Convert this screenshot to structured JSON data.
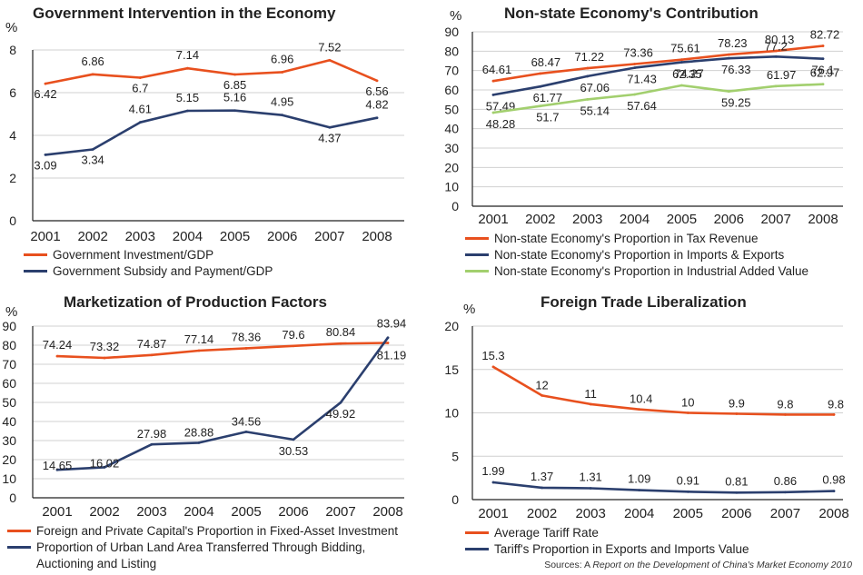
{
  "source": {
    "prefix": "Sources: A ",
    "title": "Report on the Development of China's Market Economy 2010"
  },
  "colors": {
    "orange": "#e8501e",
    "navy": "#2b3f6e",
    "green": "#a2cf6e",
    "grid": "#d0d0d0",
    "axis": "#222222"
  },
  "chart_data": [
    {
      "type": "line",
      "title": "Government Intervention in the Economy",
      "ylabel": "%",
      "ylim": [
        0,
        8
      ],
      "yticks": [
        0,
        2,
        4,
        6,
        8
      ],
      "grid": true,
      "legend_position": "bottom",
      "categories": [
        "2001",
        "2002",
        "2003",
        "2004",
        "2005",
        "2006",
        "2007",
        "2008"
      ],
      "series": [
        {
          "name": "Government Investment/GDP",
          "color": "#e8501e",
          "values": [
            6.42,
            6.86,
            6.7,
            7.14,
            6.85,
            6.96,
            7.52,
            6.56
          ],
          "labels": [
            "6.42",
            "6.86",
            "6.7",
            "7.14",
            "6.85",
            "6.96",
            "7.52",
            "6.56"
          ]
        },
        {
          "name": "Government Subsidy and Payment/GDP",
          "color": "#2b3f6e",
          "values": [
            3.09,
            3.34,
            4.61,
            5.15,
            5.16,
            4.95,
            4.37,
            4.82
          ],
          "labels": [
            "3.09",
            "3.34",
            "4.61",
            "5.15",
            "5.16",
            "4.95",
            "4.37",
            "4.82"
          ]
        }
      ]
    },
    {
      "type": "line",
      "title": "Non-state Economy's Contribution",
      "ylabel": "%",
      "ylim": [
        0,
        90
      ],
      "yticks": [
        0,
        10,
        20,
        30,
        40,
        50,
        60,
        70,
        80,
        90
      ],
      "grid": true,
      "legend_position": "bottom",
      "categories": [
        "2001",
        "2002",
        "2003",
        "2004",
        "2005",
        "2006",
        "2007",
        "2008"
      ],
      "series": [
        {
          "name": "Non-state Economy's Proportion in Tax Revenue",
          "color": "#e8501e",
          "values": [
            64.61,
            68.47,
            71.22,
            73.36,
            75.61,
            78.23,
            80.13,
            82.72
          ],
          "labels": [
            "64.61",
            "68.47",
            "71.22",
            "73.36",
            "75.61",
            "78.23",
            "80.13",
            "82.72"
          ]
        },
        {
          "name": "Non-state Economy's Proportion in Imports & Exports",
          "color": "#2b3f6e",
          "values": [
            57.49,
            61.77,
            67.06,
            71.43,
            74.27,
            76.33,
            77.2,
            76.1
          ],
          "labels": [
            "57.49",
            "61.77",
            "67.06",
            "71.43",
            "74.27",
            "76.33",
            "77.2",
            "76.1"
          ]
        },
        {
          "name": "Non-state Economy's Proportion in Industrial Added Value",
          "color": "#a2cf6e",
          "values": [
            48.28,
            51.7,
            55.14,
            57.64,
            62.35,
            59.25,
            61.97,
            62.97
          ],
          "labels": [
            "48.28",
            "51.7",
            "55.14",
            "57.64",
            "62.35",
            "59.25",
            "61.97",
            "62.97"
          ]
        }
      ]
    },
    {
      "type": "line",
      "title": "Marketization of Production Factors",
      "ylabel": "%",
      "ylim": [
        0,
        90
      ],
      "yticks": [
        0,
        10,
        20,
        30,
        40,
        50,
        60,
        70,
        80,
        90
      ],
      "grid": true,
      "legend_position": "bottom",
      "categories": [
        "2001",
        "2002",
        "2003",
        "2004",
        "2005",
        "2006",
        "2007",
        "2008"
      ],
      "series": [
        {
          "name": "Foreign and Private Capital's Proportion in Fixed-Asset Investment",
          "color": "#e8501e",
          "values": [
            74.24,
            73.32,
            74.87,
            77.14,
            78.36,
            79.6,
            80.84,
            81.19
          ],
          "labels": [
            "74.24",
            "73.32",
            "74.87",
            "77.14",
            "78.36",
            "79.6",
            "80.84",
            "81.19"
          ]
        },
        {
          "name": "Proportion of Urban Land Area Transferred Through Bidding, Auctioning and Listing",
          "color": "#2b3f6e",
          "values": [
            14.65,
            16.02,
            27.98,
            28.88,
            34.56,
            30.53,
            49.92,
            83.94
          ],
          "labels": [
            "14.65",
            "16.02",
            "27.98",
            "28.88",
            "34.56",
            "30.53",
            "49.92",
            "83.94"
          ]
        }
      ]
    },
    {
      "type": "line",
      "title": "Foreign Trade Liberalization",
      "ylabel": "%",
      "ylim": [
        0,
        20
      ],
      "yticks": [
        0,
        5,
        10,
        15,
        20
      ],
      "grid": true,
      "legend_position": "bottom",
      "categories": [
        "2001",
        "2002",
        "2003",
        "2004",
        "2005",
        "2006",
        "2007",
        "2008"
      ],
      "series": [
        {
          "name": "Average Tariff Rate",
          "color": "#e8501e",
          "values": [
            15.3,
            12,
            11,
            10.4,
            10,
            9.9,
            9.8,
            9.8
          ],
          "labels": [
            "15.3",
            "12",
            "11",
            "10.4",
            "10",
            "9.9",
            "9.8",
            "9.8"
          ]
        },
        {
          "name": "Tariff's Proportion in Exports and Imports Value",
          "color": "#2b3f6e",
          "values": [
            1.99,
            1.37,
            1.31,
            1.09,
            0.91,
            0.81,
            0.86,
            0.98
          ],
          "labels": [
            "1.99",
            "1.37",
            "1.31",
            "1.09",
            "0.91",
            "0.81",
            "0.86",
            "0.98"
          ]
        }
      ]
    }
  ]
}
